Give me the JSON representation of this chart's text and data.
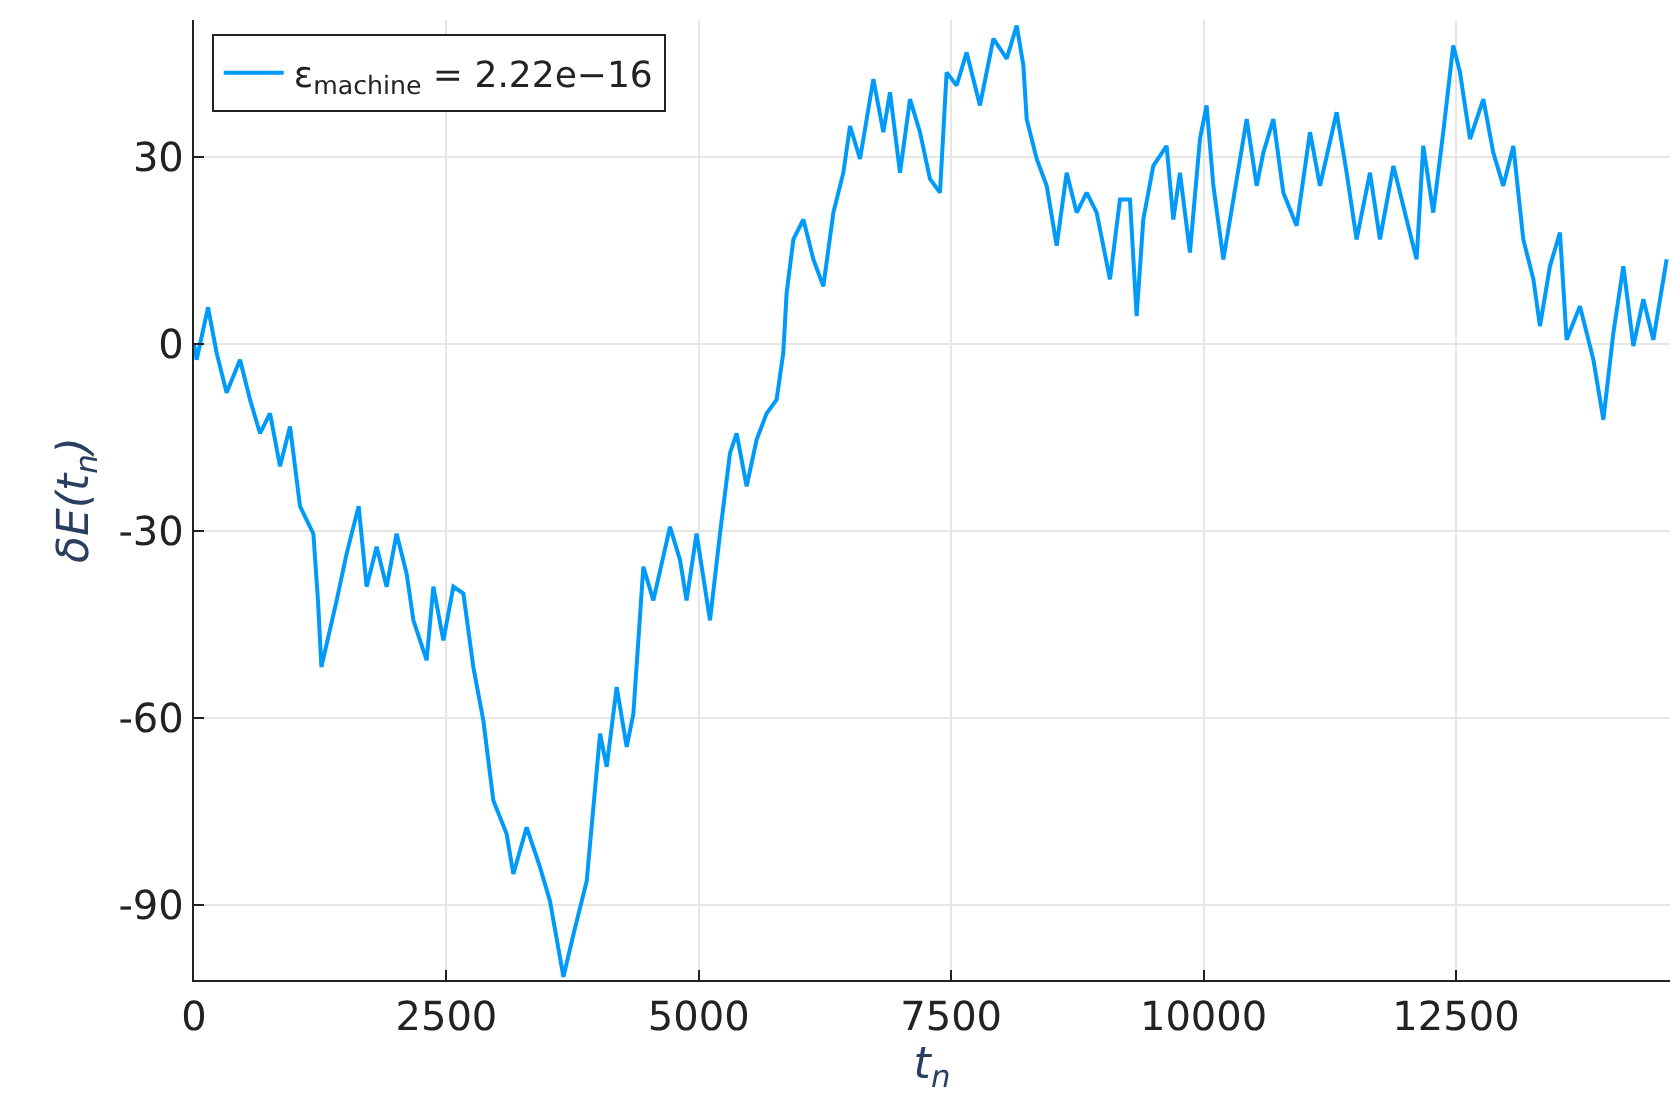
{
  "chart_data": {
    "type": "line",
    "xlabel": "t$_{n}$",
    "ylabel": "δE(t$_{n}$)",
    "xlim": [
      0,
      14620
    ],
    "ylim": [
      -102,
      52
    ],
    "xticks": [
      0,
      2500,
      5000,
      7500,
      10000,
      12500
    ],
    "yticks": [
      -90,
      -60,
      -30,
      0,
      30
    ],
    "grid": true,
    "legend": "top left",
    "line_style": "solid",
    "marker": "none",
    "x": [
      0,
      26,
      139,
      224,
      323,
      456,
      555,
      654,
      753,
      852,
      951,
      1050,
      1182,
      1228,
      1262,
      1413,
      1512,
      1631,
      1710,
      1809,
      1908,
      2007,
      2106,
      2173,
      2304,
      2371,
      2470,
      2569,
      2668,
      2767,
      2866,
      2965,
      3097,
      3163,
      3295,
      3427,
      3526,
      3659,
      3758,
      3890,
      4022,
      4088,
      4187,
      4286,
      4352,
      4451,
      4550,
      4715,
      4814,
      4879,
      4978,
      5111,
      5210,
      5309,
      5375,
      5474,
      5573,
      5672,
      5771,
      5837,
      5870,
      5937,
      6036,
      6135,
      6234,
      6333,
      6432,
      6498,
      6597,
      6729,
      6828,
      6894,
      6993,
      7092,
      7191,
      7290,
      7389,
      7455,
      7554,
      7653,
      7785,
      7918,
      8050,
      8149,
      8215,
      8248,
      8347,
      8446,
      8545,
      8644,
      8743,
      8842,
      8941,
      9073,
      9172,
      9271,
      9337,
      9403,
      9502,
      9634,
      9700,
      9766,
      9865,
      9964,
      10030,
      10097,
      10196,
      10295,
      10427,
      10526,
      10592,
      10691,
      10790,
      10922,
      11054,
      11153,
      11318,
      11417,
      11516,
      11648,
      11747,
      11880,
      12011,
      12110,
      12176,
      12275,
      12374,
      12473,
      12540,
      12639,
      12771,
      12870,
      12969,
      13068,
      13167,
      13267,
      13332,
      13431,
      13530,
      13596,
      13728,
      13861,
      13960,
      14059,
      14158,
      14257,
      14356,
      14455,
      14587
    ],
    "series": [
      {
        "name": "ε$_{machine}$ = 2.22e−16",
        "color": "#009afa",
        "values": [
          0,
          -2.5,
          5.9,
          -1.4,
          -7.8,
          -2.5,
          -8.9,
          -14.3,
          -11.1,
          -19.6,
          -13.2,
          -26.0,
          -30.4,
          -41.1,
          -51.8,
          -41.1,
          -33.6,
          -26.0,
          -38.9,
          -32.5,
          -38.9,
          -30.4,
          -36.8,
          -44.3,
          -50.7,
          -38.9,
          -47.5,
          -38.9,
          -40.0,
          -51.8,
          -60.4,
          -73.2,
          -78.6,
          -85.0,
          -77.5,
          -83.9,
          -89.3,
          -101.5,
          -94.7,
          -86.1,
          -62.5,
          -67.8,
          -55.0,
          -64.6,
          -59.3,
          -35.7,
          -41.1,
          -29.3,
          -34.6,
          -41.1,
          -30.4,
          -44.3,
          -30.4,
          -17.5,
          -14.3,
          -22.8,
          -15.3,
          -11.1,
          -8.9,
          -1.4,
          8.2,
          16.8,
          20.0,
          13.6,
          9.3,
          21.1,
          27.5,
          35.0,
          29.7,
          42.5,
          34.0,
          40.4,
          27.5,
          39.3,
          34.0,
          26.5,
          24.3,
          43.6,
          41.5,
          46.8,
          38.3,
          49.0,
          45.8,
          51.1,
          44.7,
          36.1,
          29.7,
          25.4,
          15.8,
          27.5,
          21.1,
          24.3,
          21.1,
          10.4,
          23.2,
          23.2,
          4.5,
          20.0,
          28.6,
          31.8,
          20.0,
          27.5,
          14.7,
          32.9,
          38.3,
          25.4,
          13.6,
          23.2,
          36.1,
          25.4,
          30.7,
          36.1,
          24.3,
          19.0,
          34.0,
          25.4,
          37.2,
          27.5,
          16.8,
          27.5,
          16.8,
          28.6,
          20.0,
          13.6,
          31.8,
          21.1,
          34.0,
          47.9,
          43.6,
          32.9,
          39.3,
          30.7,
          25.4,
          31.8,
          16.8,
          10.4,
          2.9,
          12.5,
          17.9,
          0.7,
          6.1,
          -2.5,
          -12.1,
          1.8,
          12.5,
          -0.3,
          7.2,
          0.7,
          13.6
        ]
      }
    ]
  }
}
